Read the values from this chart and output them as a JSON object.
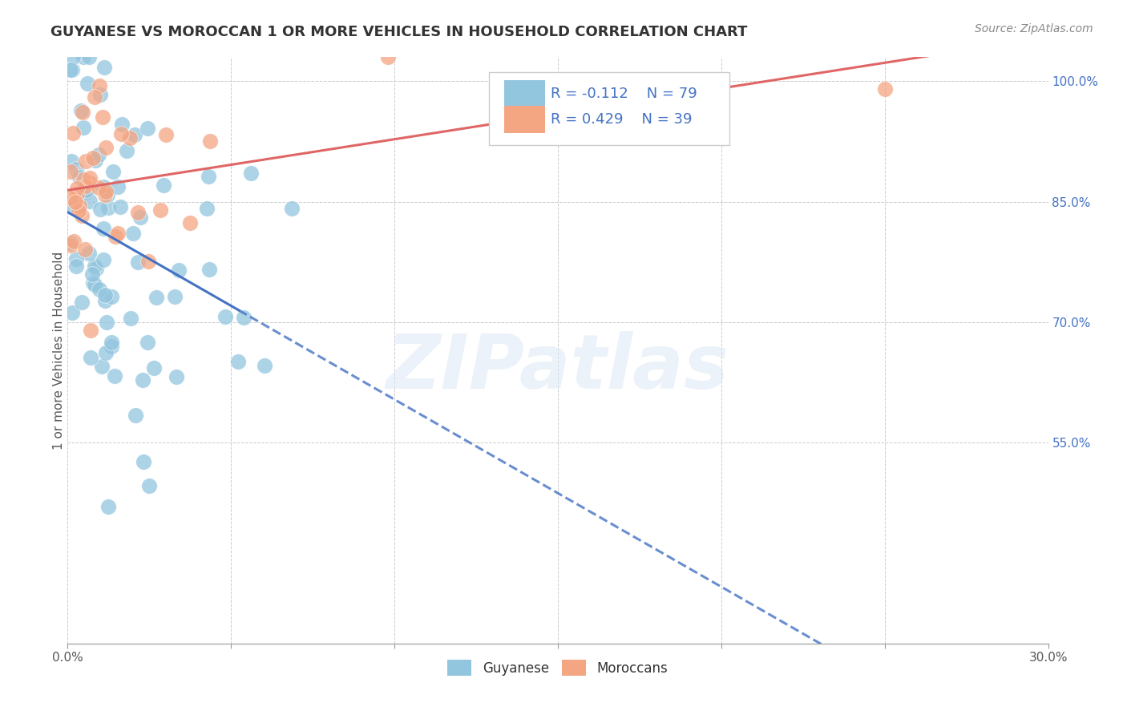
{
  "title": "GUYANESE VS MOROCCAN 1 OR MORE VEHICLES IN HOUSEHOLD CORRELATION CHART",
  "source": "Source: ZipAtlas.com",
  "ylabel": "1 or more Vehicles in Household",
  "xlim": [
    0.0,
    0.3
  ],
  "ylim": [
    0.3,
    1.03
  ],
  "xtick_vals": [
    0.0,
    0.05,
    0.1,
    0.15,
    0.2,
    0.25,
    0.3
  ],
  "xtick_labels": [
    "0.0%",
    "",
    "",
    "",
    "",
    "",
    "30.0%"
  ],
  "ytick_vals": [
    0.55,
    0.7,
    0.85,
    1.0
  ],
  "ytick_labels": [
    "55.0%",
    "70.0%",
    "85.0%",
    "100.0%"
  ],
  "blue_color": "#92c5de",
  "pink_color": "#f4a582",
  "blue_fill": "#aec6e8",
  "pink_fill": "#f5b8b8",
  "blue_line_color": "#4472c4",
  "pink_line_color": "#e06666",
  "legend_blue_label": "Guyanese",
  "legend_pink_label": "Moroccans",
  "legend_r_blue": "-0.112",
  "legend_n_blue": "79",
  "legend_r_pink": "0.429",
  "legend_n_pink": "39",
  "watermark": "ZIPatlas",
  "title_fontsize": 13,
  "axis_label_fontsize": 11,
  "legend_fontsize": 13
}
